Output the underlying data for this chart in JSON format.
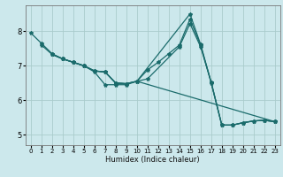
{
  "title": "",
  "xlabel": "Humidex (Indice chaleur)",
  "bg_color": "#cce8ec",
  "line_color": "#1a6b6b",
  "grid_color": "#aacccc",
  "xlim": [
    -0.5,
    23.5
  ],
  "ylim": [
    4.7,
    8.75
  ],
  "xticks": [
    0,
    1,
    2,
    3,
    4,
    5,
    6,
    7,
    8,
    9,
    10,
    11,
    12,
    13,
    14,
    15,
    16,
    17,
    18,
    19,
    20,
    21,
    22,
    23
  ],
  "yticks": [
    5,
    6,
    7,
    8
  ],
  "lines": [
    {
      "x": [
        0,
        1,
        2,
        3,
        4,
        5,
        6,
        7,
        8,
        9,
        10,
        11,
        12,
        13,
        14,
        15,
        16,
        17,
        18,
        19,
        20,
        21,
        22,
        23
      ],
      "y": [
        7.95,
        7.65,
        7.35,
        7.2,
        7.1,
        7.0,
        6.82,
        6.45,
        6.45,
        6.45,
        6.55,
        6.88,
        7.1,
        7.35,
        7.6,
        8.35,
        7.6,
        6.5,
        5.28,
        5.28,
        5.35,
        5.4,
        5.42,
        5.38
      ]
    },
    {
      "x": [
        1,
        2,
        3,
        4,
        5,
        6,
        7,
        8,
        9,
        10,
        15,
        16,
        17,
        18,
        19,
        20,
        21,
        22,
        23
      ],
      "y": [
        7.6,
        7.33,
        7.2,
        7.1,
        7.0,
        6.85,
        6.82,
        6.5,
        6.48,
        6.55,
        8.5,
        7.62,
        6.52,
        5.28,
        5.28,
        5.35,
        5.4,
        5.42,
        5.38
      ]
    },
    {
      "x": [
        2,
        3,
        4,
        5,
        6,
        7,
        8,
        9,
        10,
        23
      ],
      "y": [
        7.33,
        7.2,
        7.1,
        7.0,
        6.85,
        6.82,
        6.5,
        6.48,
        6.55,
        5.38
      ]
    },
    {
      "x": [
        2,
        3,
        4,
        5,
        6,
        7,
        8,
        9,
        10,
        11,
        14,
        15,
        16,
        17,
        18,
        19,
        20,
        21,
        22,
        23
      ],
      "y": [
        7.33,
        7.2,
        7.1,
        7.0,
        6.85,
        6.82,
        6.5,
        6.48,
        6.55,
        6.62,
        7.55,
        8.22,
        7.55,
        6.52,
        5.28,
        5.28,
        5.35,
        5.4,
        5.42,
        5.38
      ]
    }
  ]
}
